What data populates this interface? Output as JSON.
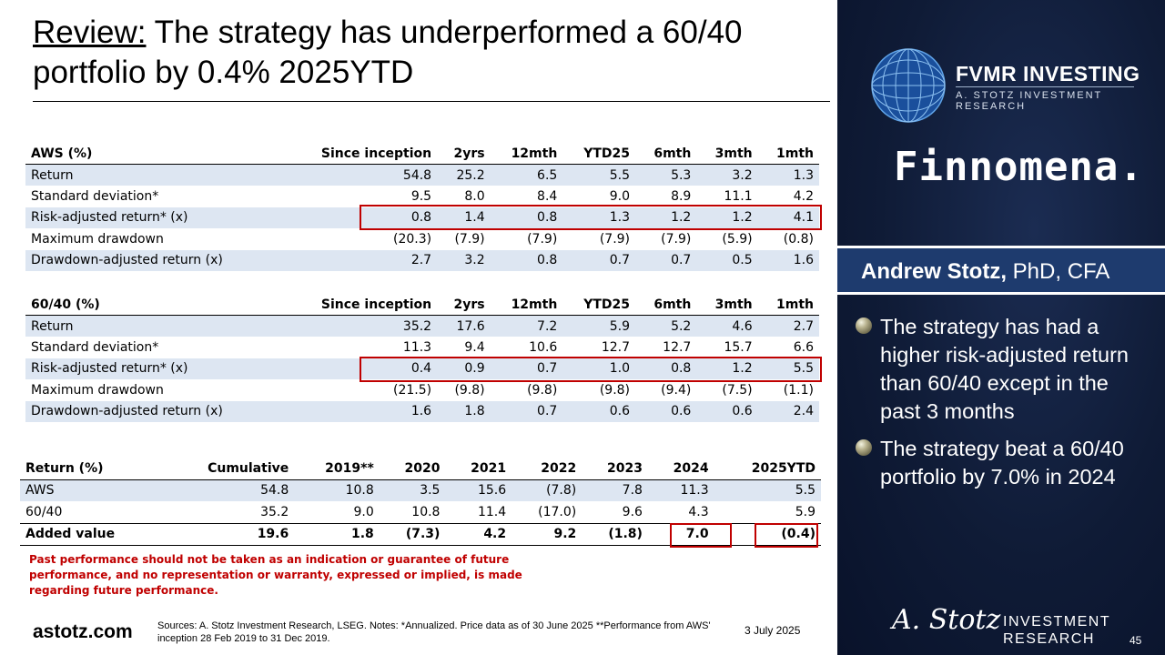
{
  "title": {
    "lead": "Review:",
    "rest": " The strategy has underperformed a 60/40 portfolio by 0.4% 2025YTD"
  },
  "columns": [
    "Since inception",
    "2yrs",
    "12mth",
    "YTD25",
    "6mth",
    "3mth",
    "1mth"
  ],
  "aws_table": {
    "header": "AWS (%)",
    "rows": [
      {
        "label": "Return",
        "values": [
          "54.8",
          "25.2",
          "6.5",
          "5.5",
          "5.3",
          "3.2",
          "1.3"
        ]
      },
      {
        "label": "Standard deviation*",
        "values": [
          "9.5",
          "8.0",
          "8.4",
          "9.0",
          "8.9",
          "11.1",
          "4.2"
        ]
      },
      {
        "label": "Risk-adjusted return* (x)",
        "values": [
          "0.8",
          "1.4",
          "0.8",
          "1.3",
          "1.2",
          "1.2",
          "4.1"
        ]
      },
      {
        "label": "Maximum drawdown",
        "values": [
          "(20.3)",
          "(7.9)",
          "(7.9)",
          "(7.9)",
          "(7.9)",
          "(5.9)",
          "(0.8)"
        ]
      },
      {
        "label": "Drawdown-adjusted return (x)",
        "values": [
          "2.7",
          "3.2",
          "0.8",
          "0.7",
          "0.7",
          "0.5",
          "1.6"
        ]
      }
    ]
  },
  "sixty_table": {
    "header": "60/40 (%)",
    "rows": [
      {
        "label": "Return",
        "values": [
          "35.2",
          "17.6",
          "7.2",
          "5.9",
          "5.2",
          "4.6",
          "2.7"
        ]
      },
      {
        "label": "Standard deviation*",
        "values": [
          "11.3",
          "9.4",
          "10.6",
          "12.7",
          "12.7",
          "15.7",
          "6.6"
        ]
      },
      {
        "label": "Risk-adjusted return* (x)",
        "values": [
          "0.4",
          "0.9",
          "0.7",
          "1.0",
          "0.8",
          "1.2",
          "5.5"
        ]
      },
      {
        "label": "Maximum drawdown",
        "values": [
          "(21.5)",
          "(9.8)",
          "(9.8)",
          "(9.8)",
          "(9.4)",
          "(7.5)",
          "(1.1)"
        ]
      },
      {
        "label": "Drawdown-adjusted return (x)",
        "values": [
          "1.6",
          "1.8",
          "0.7",
          "0.6",
          "0.6",
          "0.6",
          "2.4"
        ]
      }
    ]
  },
  "return_table": {
    "header": "Return (%)",
    "columns": [
      "Cumulative",
      "2019**",
      "2020",
      "2021",
      "2022",
      "2023",
      "2024",
      "2025YTD"
    ],
    "rows": [
      {
        "label": "AWS",
        "values": [
          "54.8",
          "10.8",
          "3.5",
          "15.6",
          "(7.8)",
          "7.8",
          "11.3",
          "5.5"
        ]
      },
      {
        "label": "60/40",
        "values": [
          "35.2",
          "9.0",
          "10.8",
          "11.4",
          "(17.0)",
          "9.6",
          "4.3",
          "5.9"
        ]
      },
      {
        "label": "Added value",
        "values": [
          "19.6",
          "1.8",
          "(7.3)",
          "4.2",
          "9.2",
          "(1.8)",
          "7.0",
          "(0.4)"
        ]
      }
    ]
  },
  "disclaimer": "Past performance should not be taken as an indication or guarantee of future performance, and no representation or warranty, expressed or implied, is made regarding future performance.",
  "footer": {
    "site": "astotz.com",
    "sources": "Sources: A. Stotz Investment Research, LSEG. Notes: *Annualized. Price data as of 30 June 2025 **Performance from AWS' inception 28 Feb 2019 to 31 Dec 2019.",
    "date": "3 July 2025",
    "page": "45"
  },
  "panel": {
    "brand_title": "FVMR INVESTING",
    "brand_sub": "A. STOTZ INVESTMENT RESEARCH",
    "partner": "Finnomena.",
    "presenter_name": "Andrew Stotz,",
    "presenter_title": " PhD, CFA",
    "bullets": [
      "The strategy has had a higher risk-adjusted return than 60/40 except in the past 3 months",
      "The strategy beat a 60/40 portfolio by 7.0% in 2024"
    ],
    "signature": "A. Stotz",
    "ir_line1": "INVESTMENT",
    "ir_line2": "RESEARCH"
  },
  "colors": {
    "highlight_red": "#c00000",
    "row_shade": "#dde6f2",
    "panel_navy": "#0f1b36",
    "band_blue": "#1e3b6e"
  }
}
